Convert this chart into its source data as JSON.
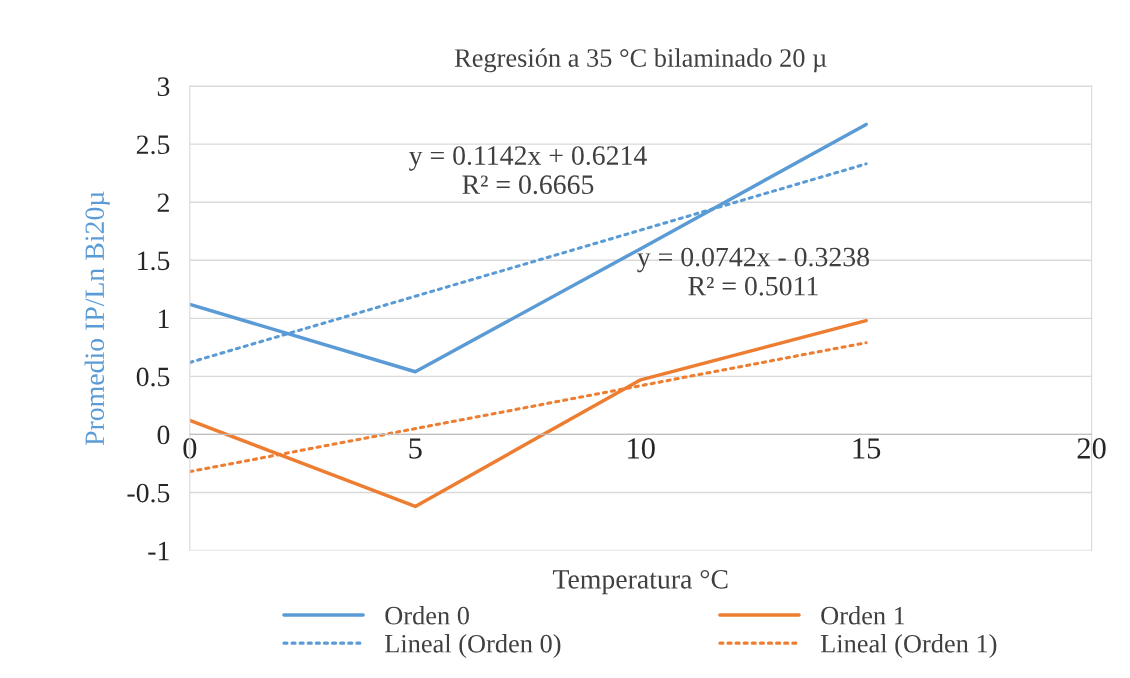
{
  "chart_data": {
    "type": "line",
    "title": "Regresión a 35 °C bilaminado 20 µ",
    "xlabel": "Temperatura °C",
    "ylabel": "Promedio IP/Ln Bi20µ",
    "series": [
      {
        "name": "Orden 0",
        "color": "#5b9bd5",
        "x": [
          0,
          5,
          10,
          15
        ],
        "values": [
          1.12,
          0.54,
          1.6,
          2.67
        ],
        "line_style": "solid"
      },
      {
        "name": "Orden 1",
        "color": "#ed7d31",
        "x": [
          0,
          5,
          10,
          15
        ],
        "values": [
          0.12,
          -0.62,
          0.47,
          0.98
        ],
        "line_style": "solid"
      },
      {
        "name": "Lineal (Orden 0)",
        "color": "#5b9bd5",
        "x": [
          0,
          15
        ],
        "values": [
          0.62,
          2.33
        ],
        "line_style": "dotted"
      },
      {
        "name": "Lineal (Orden 1)",
        "color": "#ed7d31",
        "x": [
          0,
          15
        ],
        "values": [
          -0.32,
          0.79
        ],
        "line_style": "dotted"
      }
    ],
    "annotations": [
      {
        "text": "y = 0.1142x + 0.6214\nR² = 0.6665",
        "x": 7.5,
        "y": 1.4779
      },
      {
        "text": "y = 0.0742x - 0.3238\nR² = 0.5011",
        "x": 12.5,
        "y": 0.6037
      }
    ],
    "xlim": [
      0,
      20
    ],
    "xticks": [
      0,
      5,
      10,
      15,
      20
    ],
    "ylim": [
      -1,
      3
    ],
    "yticks": [
      -1,
      -0.5,
      0,
      0.5,
      1,
      1.5,
      2,
      2.5,
      3
    ],
    "grid": "y",
    "legend": "bottom",
    "marker": "none"
  }
}
